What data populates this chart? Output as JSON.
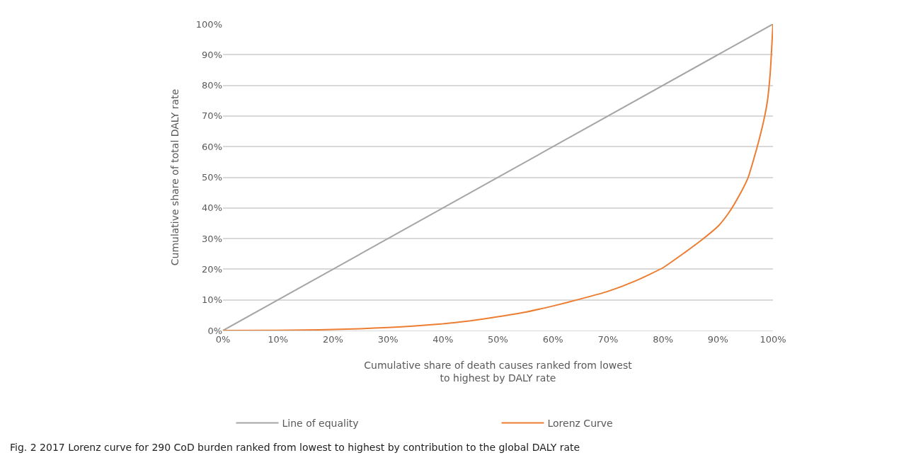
{
  "chart_data": {
    "type": "line",
    "xlabel": "Cumulative share of death causes ranked from lowest\nto highest by DALY rate",
    "ylabel": "Cumulative share of total DALY rate",
    "series": [
      {
        "name": "Line of equality",
        "color": "#a5a5a5",
        "x": [
          0,
          100
        ],
        "values": [
          0,
          100
        ]
      },
      {
        "name": "Lorenz Curve",
        "color": "#ed7d31",
        "x": [
          0,
          10,
          15,
          20,
          25,
          30,
          35,
          40,
          45,
          50,
          55,
          60,
          65,
          70,
          75,
          80,
          84,
          87,
          90,
          92,
          94,
          95.5,
          96.8,
          97.4,
          98,
          98.5,
          99,
          99.5,
          100
        ],
        "values": [
          0,
          0.05,
          0.15,
          0.35,
          0.6,
          1.0,
          1.5,
          2.2,
          3.2,
          4.5,
          6.0,
          8.0,
          10.3,
          12.8,
          16.2,
          20.5,
          25.5,
          29.5,
          34,
          38.5,
          44.5,
          50,
          57.8,
          61.7,
          66,
          70,
          75,
          84,
          100
        ]
      }
    ],
    "xlim": [
      0,
      100
    ],
    "xticks": [
      {
        "value": 0,
        "label": "0%"
      },
      {
        "value": 10,
        "label": "10%"
      },
      {
        "value": 20,
        "label": "20%"
      },
      {
        "value": 30,
        "label": "30%"
      },
      {
        "value": 40,
        "label": "40%"
      },
      {
        "value": 50,
        "label": "50%"
      },
      {
        "value": 60,
        "label": "60%"
      },
      {
        "value": 70,
        "label": "70%"
      },
      {
        "value": 80,
        "label": "80%"
      },
      {
        "value": 90,
        "label": "90%"
      },
      {
        "value": 100,
        "label": "100%"
      }
    ],
    "ylim": [
      0,
      100
    ],
    "yticks": [
      {
        "value": 0,
        "label": "0%"
      },
      {
        "value": 10,
        "label": "10%"
      },
      {
        "value": 20,
        "label": "20%"
      },
      {
        "value": 30,
        "label": "30%"
      },
      {
        "value": 40,
        "label": "40%"
      },
      {
        "value": 50,
        "label": "50%"
      },
      {
        "value": 60,
        "label": "60%"
      },
      {
        "value": 70,
        "label": "70%"
      },
      {
        "value": 80,
        "label": "80%"
      },
      {
        "value": 90,
        "label": "90%"
      },
      {
        "value": 100,
        "label": "100%"
      }
    ],
    "grid": "y",
    "legend": "bottom",
    "marker": "none",
    "line_style": "solid",
    "annotations": [
      "Fig. 2 2017 Lorenz curve for 290 CoD burden ranked from lowest to highest by contribution to the global DALY rate"
    ]
  }
}
